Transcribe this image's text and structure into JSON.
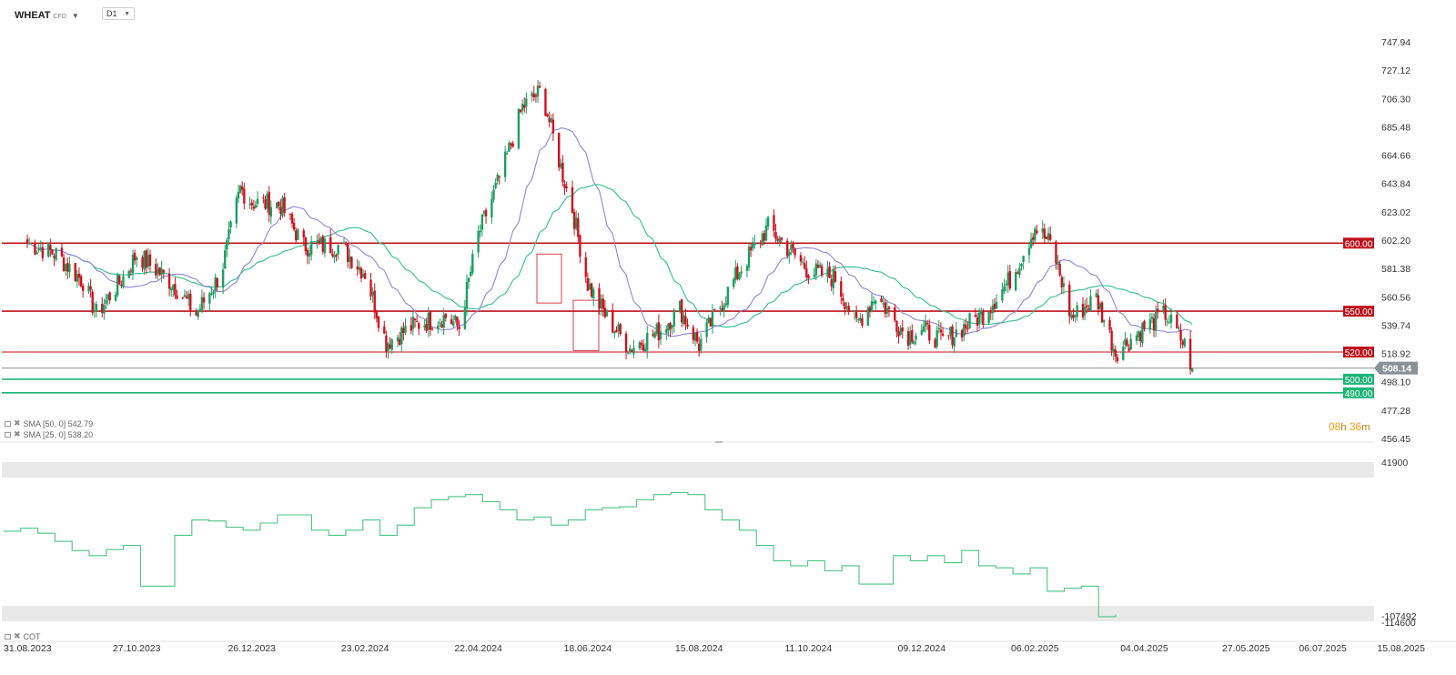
{
  "header": {
    "symbol": "WHEAT",
    "symbol_type": "CFD",
    "timeframe": "D1",
    "symbol_dropdown_icon": "caret-down-icon",
    "timeframe_dropdown_icon": "caret-down-icon"
  },
  "countdown": {
    "hours": "08",
    "h_unit": "h",
    "minutes": "36",
    "m_unit": "m"
  },
  "legend": [
    {
      "label": "SMA [50, 0] 542.79",
      "color": "#2fbf8f"
    },
    {
      "label": "SMA [25, 0] 538.20",
      "color": "#8f86d6"
    }
  ],
  "cot_legend": {
    "label": "COT"
  },
  "colors": {
    "up": "#1e9e63",
    "down": "#d2111e",
    "sma50": "#2fbf8f",
    "sma25": "#8f86d6",
    "resistance": "#c0121c",
    "support": "#1bb477",
    "cot_line": "#4ec487",
    "current_price": "#8a9196"
  },
  "chart_data": [
    {
      "type": "candlestick",
      "symbol": "WHEAT",
      "title": "",
      "y_ticks": [
        "747.94",
        "727.12",
        "706.30",
        "685.48",
        "664.66",
        "643.84",
        "623.02",
        "602.20",
        "581.38",
        "560.56",
        "539.74",
        "518.92",
        "498.10",
        "477.28",
        "456.45"
      ],
      "ylim": [
        456.45,
        747.94
      ],
      "x_ticks": [
        "31.08.2023",
        "27.10.2023",
        "26.12.2023",
        "23.02.2024",
        "22.04.2024",
        "18.06.2024",
        "15.08.2024",
        "11.10.2024",
        "09.12.2024",
        "06.02.2025",
        "04.04.2025",
        "27.05.2025",
        "06.07.2025",
        "15.08.2025"
      ],
      "price_path": [
        {
          "date": "31.08.2023",
          "close": 600
        },
        {
          "date": "15.09.2023",
          "close": 592
        },
        {
          "date": "29.09.2023",
          "close": 572
        },
        {
          "date": "06.10.2023",
          "close": 548
        },
        {
          "date": "20.10.2023",
          "close": 575
        },
        {
          "date": "27.10.2023",
          "close": 592
        },
        {
          "date": "15.11.2023",
          "close": 570
        },
        {
          "date": "27.11.2023",
          "close": 548
        },
        {
          "date": "10.12.2023",
          "close": 578
        },
        {
          "date": "20.12.2023",
          "close": 640
        },
        {
          "date": "26.12.2023",
          "close": 630
        },
        {
          "date": "10.01.2024",
          "close": 628
        },
        {
          "date": "22.01.2024",
          "close": 598
        },
        {
          "date": "10.02.2024",
          "close": 598
        },
        {
          "date": "23.02.2024",
          "close": 578
        },
        {
          "date": "05.03.2024",
          "close": 527
        },
        {
          "date": "20.03.2024",
          "close": 540
        },
        {
          "date": "05.04.2024",
          "close": 546
        },
        {
          "date": "12.04.2024",
          "close": 538
        },
        {
          "date": "22.04.2024",
          "close": 606
        },
        {
          "date": "05.05.2024",
          "close": 655
        },
        {
          "date": "15.05.2024",
          "close": 700
        },
        {
          "date": "25.05.2024",
          "close": 712
        },
        {
          "date": "05.06.2024",
          "close": 650
        },
        {
          "date": "10.06.2024",
          "close": 625
        },
        {
          "date": "18.06.2024",
          "close": 570
        },
        {
          "date": "28.06.2024",
          "close": 545
        },
        {
          "date": "10.07.2024",
          "close": 523
        },
        {
          "date": "25.07.2024",
          "close": 535
        },
        {
          "date": "05.08.2024",
          "close": 552
        },
        {
          "date": "15.08.2024",
          "close": 525
        },
        {
          "date": "05.09.2024",
          "close": 580
        },
        {
          "date": "20.09.2024",
          "close": 612
        },
        {
          "date": "11.10.2024",
          "close": 580
        },
        {
          "date": "25.10.2024",
          "close": 574
        },
        {
          "date": "05.11.2024",
          "close": 540
        },
        {
          "date": "15.11.2024",
          "close": 562
        },
        {
          "date": "01.12.2024",
          "close": 532
        },
        {
          "date": "09.12.2024",
          "close": 537
        },
        {
          "date": "20.12.2024",
          "close": 528
        },
        {
          "date": "10.01.2025",
          "close": 548
        },
        {
          "date": "25.01.2025",
          "close": 575
        },
        {
          "date": "06.02.2025",
          "close": 612
        },
        {
          "date": "15.02.2025",
          "close": 598
        },
        {
          "date": "25.02.2025",
          "close": 545
        },
        {
          "date": "10.03.2025",
          "close": 560
        },
        {
          "date": "20.03.2025",
          "close": 520
        },
        {
          "date": "04.04.2025",
          "close": 538
        },
        {
          "date": "15.04.2025",
          "close": 548
        },
        {
          "date": "25.04.2025",
          "close": 525
        },
        {
          "date": "29.04.2025",
          "close": 508.14
        }
      ],
      "series": [
        {
          "name": "SMA [50, 0]",
          "value": 542.79
        },
        {
          "name": "SMA [25, 0]",
          "value": 538.2
        }
      ],
      "levels": [
        {
          "label": "600.00",
          "value": 600.0,
          "kind": "resistance"
        },
        {
          "label": "550.00",
          "value": 550.0,
          "kind": "resistance"
        },
        {
          "label": "520.00",
          "value": 520.0,
          "kind": "resistance"
        },
        {
          "label": "500.00",
          "value": 500.0,
          "kind": "support"
        },
        {
          "label": "490.00",
          "value": 490.0,
          "kind": "support"
        }
      ],
      "current_price": {
        "label": "508.14",
        "value": 508.14
      },
      "grid": false
    },
    {
      "type": "line",
      "title": "COT",
      "y_ticks": [
        "41900",
        "-107492",
        "-114600"
      ],
      "ylim": [
        -114600,
        41900
      ],
      "values": [
        -26000,
        -23000,
        -28000,
        -36000,
        -45000,
        -50000,
        -44000,
        -40000,
        -80000,
        -80000,
        -30000,
        -15000,
        -16000,
        -22000,
        -25000,
        -18000,
        -10000,
        -10000,
        -25000,
        -30000,
        -25000,
        -15000,
        -30000,
        -20000,
        -3000,
        5000,
        8000,
        10000,
        3000,
        -5000,
        -15000,
        -12000,
        -20000,
        -15000,
        -5000,
        -3000,
        -2000,
        5000,
        10000,
        12000,
        10000,
        -5000,
        -15000,
        -25000,
        -40000,
        -55000,
        -60000,
        -55000,
        -65000,
        -60000,
        -78000,
        -78000,
        -50000,
        -55000,
        -50000,
        -57000,
        -45000,
        -60000,
        -62000,
        -68000,
        -62000,
        -85000,
        -82000,
        -80000,
        -110000,
        -108000
      ],
      "grid": false
    }
  ]
}
